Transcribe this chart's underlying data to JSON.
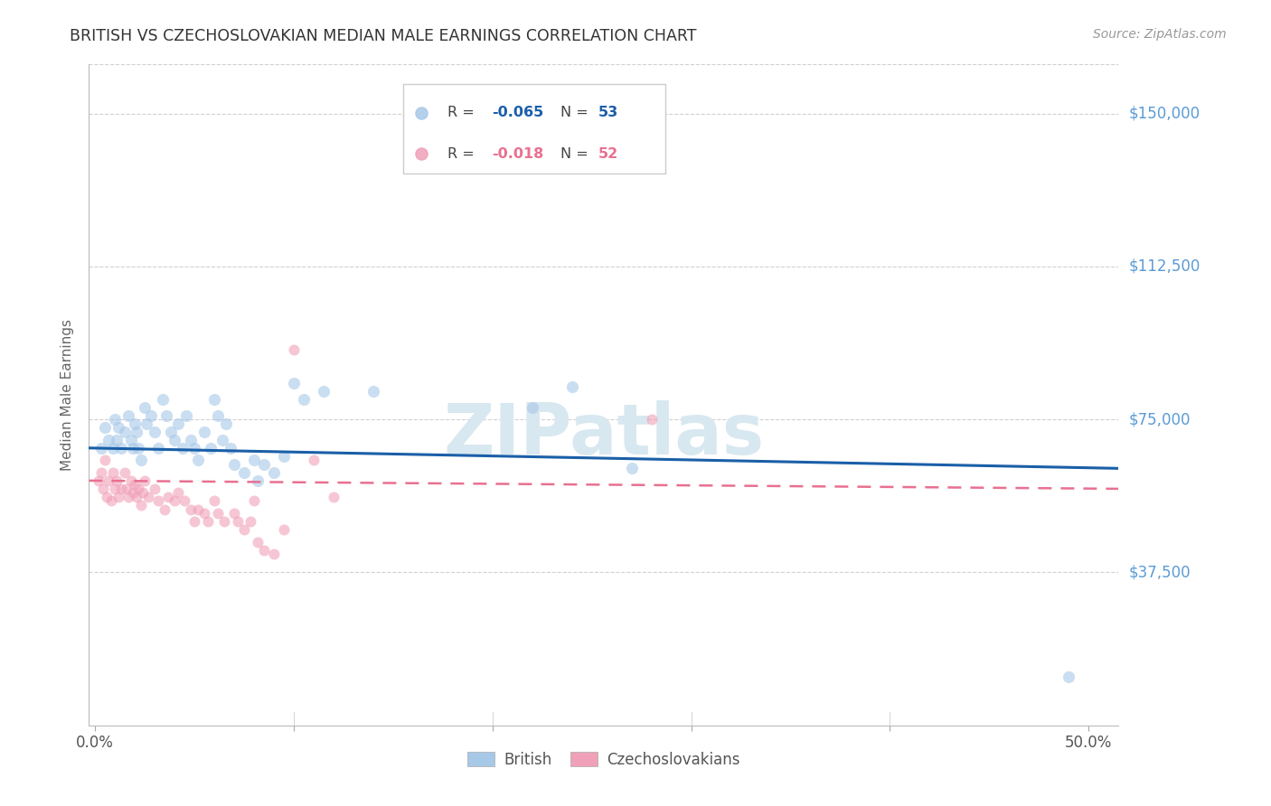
{
  "title": "BRITISH VS CZECHOSLOVAKIAN MEDIAN MALE EARNINGS CORRELATION CHART",
  "source": "Source: ZipAtlas.com",
  "ylabel": "Median Male Earnings",
  "ytick_labels": [
    "$150,000",
    "$112,500",
    "$75,000",
    "$37,500"
  ],
  "ytick_values": [
    150000,
    112500,
    75000,
    37500
  ],
  "ymin": 0,
  "ymax": 162000,
  "xmin": -0.003,
  "xmax": 0.515,
  "british_color": "#a8c8e8",
  "czech_color": "#f0a0b8",
  "british_line_color": "#1a5fa8",
  "czech_line_color": "#e87090",
  "title_color": "#333333",
  "axis_label_color": "#666666",
  "ytick_color": "#5b9bd5",
  "grid_color": "#d0d0d0",
  "background_color": "#ffffff",
  "watermark": "ZIPatlas",
  "watermark_color": "#d8e8f0",
  "british_points": [
    [
      0.003,
      68000
    ],
    [
      0.005,
      73000
    ],
    [
      0.007,
      70000
    ],
    [
      0.009,
      68000
    ],
    [
      0.01,
      75000
    ],
    [
      0.011,
      70000
    ],
    [
      0.012,
      73000
    ],
    [
      0.013,
      68000
    ],
    [
      0.015,
      72000
    ],
    [
      0.017,
      76000
    ],
    [
      0.018,
      70000
    ],
    [
      0.019,
      68000
    ],
    [
      0.02,
      74000
    ],
    [
      0.021,
      72000
    ],
    [
      0.022,
      68000
    ],
    [
      0.023,
      65000
    ],
    [
      0.025,
      78000
    ],
    [
      0.026,
      74000
    ],
    [
      0.028,
      76000
    ],
    [
      0.03,
      72000
    ],
    [
      0.032,
      68000
    ],
    [
      0.034,
      80000
    ],
    [
      0.036,
      76000
    ],
    [
      0.038,
      72000
    ],
    [
      0.04,
      70000
    ],
    [
      0.042,
      74000
    ],
    [
      0.044,
      68000
    ],
    [
      0.046,
      76000
    ],
    [
      0.048,
      70000
    ],
    [
      0.05,
      68000
    ],
    [
      0.052,
      65000
    ],
    [
      0.055,
      72000
    ],
    [
      0.058,
      68000
    ],
    [
      0.06,
      80000
    ],
    [
      0.062,
      76000
    ],
    [
      0.064,
      70000
    ],
    [
      0.066,
      74000
    ],
    [
      0.068,
      68000
    ],
    [
      0.07,
      64000
    ],
    [
      0.075,
      62000
    ],
    [
      0.08,
      65000
    ],
    [
      0.082,
      60000
    ],
    [
      0.085,
      64000
    ],
    [
      0.09,
      62000
    ],
    [
      0.095,
      66000
    ],
    [
      0.1,
      84000
    ],
    [
      0.105,
      80000
    ],
    [
      0.115,
      82000
    ],
    [
      0.14,
      82000
    ],
    [
      0.22,
      78000
    ],
    [
      0.24,
      83000
    ],
    [
      0.27,
      63000
    ],
    [
      0.49,
      12000
    ]
  ],
  "czech_points": [
    [
      0.002,
      60000
    ],
    [
      0.003,
      62000
    ],
    [
      0.004,
      58000
    ],
    [
      0.005,
      65000
    ],
    [
      0.006,
      56000
    ],
    [
      0.007,
      60000
    ],
    [
      0.008,
      55000
    ],
    [
      0.009,
      62000
    ],
    [
      0.01,
      58000
    ],
    [
      0.011,
      60000
    ],
    [
      0.012,
      56000
    ],
    [
      0.013,
      58000
    ],
    [
      0.015,
      62000
    ],
    [
      0.016,
      58000
    ],
    [
      0.017,
      56000
    ],
    [
      0.018,
      60000
    ],
    [
      0.019,
      57000
    ],
    [
      0.02,
      59000
    ],
    [
      0.021,
      56000
    ],
    [
      0.022,
      58000
    ],
    [
      0.023,
      54000
    ],
    [
      0.024,
      57000
    ],
    [
      0.025,
      60000
    ],
    [
      0.027,
      56000
    ],
    [
      0.03,
      58000
    ],
    [
      0.032,
      55000
    ],
    [
      0.035,
      53000
    ],
    [
      0.037,
      56000
    ],
    [
      0.04,
      55000
    ],
    [
      0.042,
      57000
    ],
    [
      0.045,
      55000
    ],
    [
      0.048,
      53000
    ],
    [
      0.05,
      50000
    ],
    [
      0.052,
      53000
    ],
    [
      0.055,
      52000
    ],
    [
      0.057,
      50000
    ],
    [
      0.06,
      55000
    ],
    [
      0.062,
      52000
    ],
    [
      0.065,
      50000
    ],
    [
      0.07,
      52000
    ],
    [
      0.072,
      50000
    ],
    [
      0.075,
      48000
    ],
    [
      0.078,
      50000
    ],
    [
      0.08,
      55000
    ],
    [
      0.082,
      45000
    ],
    [
      0.085,
      43000
    ],
    [
      0.09,
      42000
    ],
    [
      0.095,
      48000
    ],
    [
      0.1,
      92000
    ],
    [
      0.11,
      65000
    ],
    [
      0.12,
      56000
    ],
    [
      0.28,
      75000
    ]
  ],
  "british_marker_size": 90,
  "czech_marker_size": 75,
  "british_alpha": 0.6,
  "czech_alpha": 0.6
}
